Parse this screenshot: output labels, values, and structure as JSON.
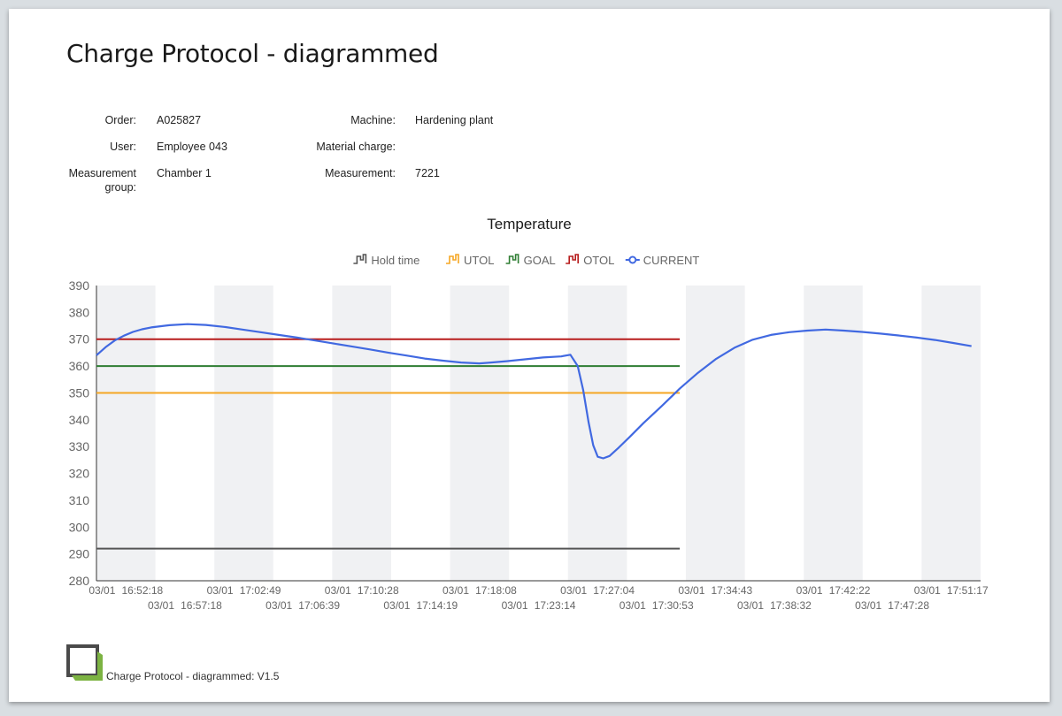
{
  "page": {
    "title": "Charge Protocol - diagrammed"
  },
  "info": {
    "order_label": "Order:",
    "order_value": "A025827",
    "user_label": "User:",
    "user_value": "Employee 043",
    "group_label_1": "Measurement",
    "group_label_2": "group:",
    "group_value": "Chamber 1",
    "machine_label": "Machine:",
    "machine_value": "Hardening plant",
    "material_label": "Material charge:",
    "material_value": "",
    "measurement_label": "Measurement:",
    "measurement_value": "7221"
  },
  "chart_data": {
    "type": "line",
    "title": "Temperature",
    "ylim": [
      280,
      390
    ],
    "yticks": [
      390,
      380,
      370,
      360,
      350,
      340,
      330,
      320,
      310,
      300,
      290,
      280
    ],
    "xlim": [
      "16:49:00",
      "17:53:00"
    ],
    "xticks": [
      {
        "date": "03/01",
        "time": "16:52:18"
      },
      {
        "date": "03/01",
        "time": "16:57:18"
      },
      {
        "date": "03/01",
        "time": "17:02:49"
      },
      {
        "date": "03/01",
        "time": "17:06:39"
      },
      {
        "date": "03/01",
        "time": "17:10:28"
      },
      {
        "date": "03/01",
        "time": "17:14:19"
      },
      {
        "date": "03/01",
        "time": "17:18:08"
      },
      {
        "date": "03/01",
        "time": "17:23:14"
      },
      {
        "date": "03/01",
        "time": "17:27:04"
      },
      {
        "date": "03/01",
        "time": "17:30:53"
      },
      {
        "date": "03/01",
        "time": "17:34:43"
      },
      {
        "date": "03/01",
        "time": "17:38:32"
      },
      {
        "date": "03/01",
        "time": "17:42:22"
      },
      {
        "date": "03/01",
        "time": "17:47:28"
      },
      {
        "date": "03/01",
        "time": "17:51:17"
      }
    ],
    "legend_position": "top",
    "series": [
      {
        "name": "Hold time",
        "color": "#555555",
        "icon": "step-line-icon",
        "values": [
          [
            0,
            292
          ],
          [
            64,
            292
          ]
        ]
      },
      {
        "name": "UTOL",
        "color": "#f5a623",
        "icon": "step-line-icon",
        "values": [
          [
            0,
            350
          ],
          [
            64,
            350
          ]
        ]
      },
      {
        "name": "GOAL",
        "color": "#2e7d32",
        "icon": "step-line-icon",
        "values": [
          [
            0,
            360
          ],
          [
            64,
            360
          ]
        ]
      },
      {
        "name": "OTOL",
        "color": "#b71c1c",
        "icon": "step-line-icon",
        "values": [
          [
            0,
            370
          ],
          [
            64,
            370
          ]
        ]
      },
      {
        "name": "CURRENT",
        "color": "#4169e1",
        "icon": "circle-line-icon",
        "values": [
          [
            0,
            364
          ],
          [
            1,
            367
          ],
          [
            2,
            369.5
          ],
          [
            3,
            371.3
          ],
          [
            4,
            372.7
          ],
          [
            5,
            373.7
          ],
          [
            6,
            374.4
          ],
          [
            8,
            375.2
          ],
          [
            10,
            375.6
          ],
          [
            12,
            375.3
          ],
          [
            14,
            374.6
          ],
          [
            16,
            373.6
          ],
          [
            18,
            372.6
          ],
          [
            20,
            371.6
          ],
          [
            22,
            370.6
          ],
          [
            24,
            369.5
          ],
          [
            26,
            368.4
          ],
          [
            28,
            367.3
          ],
          [
            30,
            366.2
          ],
          [
            32,
            365
          ],
          [
            34,
            363.9
          ],
          [
            36,
            362.8
          ],
          [
            38,
            362
          ],
          [
            40,
            361.3
          ],
          [
            42,
            361
          ],
          [
            43,
            361.2
          ],
          [
            45,
            361.8
          ],
          [
            47,
            362.5
          ],
          [
            49,
            363.2
          ],
          [
            51,
            363.6
          ],
          [
            52,
            364.2
          ],
          [
            52.8,
            360
          ],
          [
            53.4,
            351
          ],
          [
            54,
            339
          ],
          [
            54.5,
            330.5
          ],
          [
            55,
            326.2
          ],
          [
            55.6,
            325.6
          ],
          [
            56.3,
            326.5
          ],
          [
            57.3,
            329.6
          ],
          [
            58.5,
            333.6
          ],
          [
            60,
            338.7
          ],
          [
            62,
            345
          ],
          [
            64,
            351.6
          ],
          [
            66,
            357.5
          ],
          [
            68,
            362.7
          ],
          [
            70,
            366.8
          ],
          [
            72,
            369.8
          ],
          [
            74,
            371.6
          ],
          [
            76,
            372.6
          ],
          [
            78,
            373.2
          ],
          [
            80,
            373.6
          ],
          [
            82,
            373.2
          ],
          [
            84,
            372.7
          ],
          [
            86,
            372.1
          ],
          [
            88,
            371.4
          ],
          [
            90,
            370.6
          ],
          [
            92,
            369.7
          ],
          [
            94,
            368.6
          ],
          [
            96,
            367.4
          ]
        ]
      }
    ],
    "bands": 7
  },
  "footer": {
    "text": "Charge Protocol - diagrammed: V1.5"
  }
}
